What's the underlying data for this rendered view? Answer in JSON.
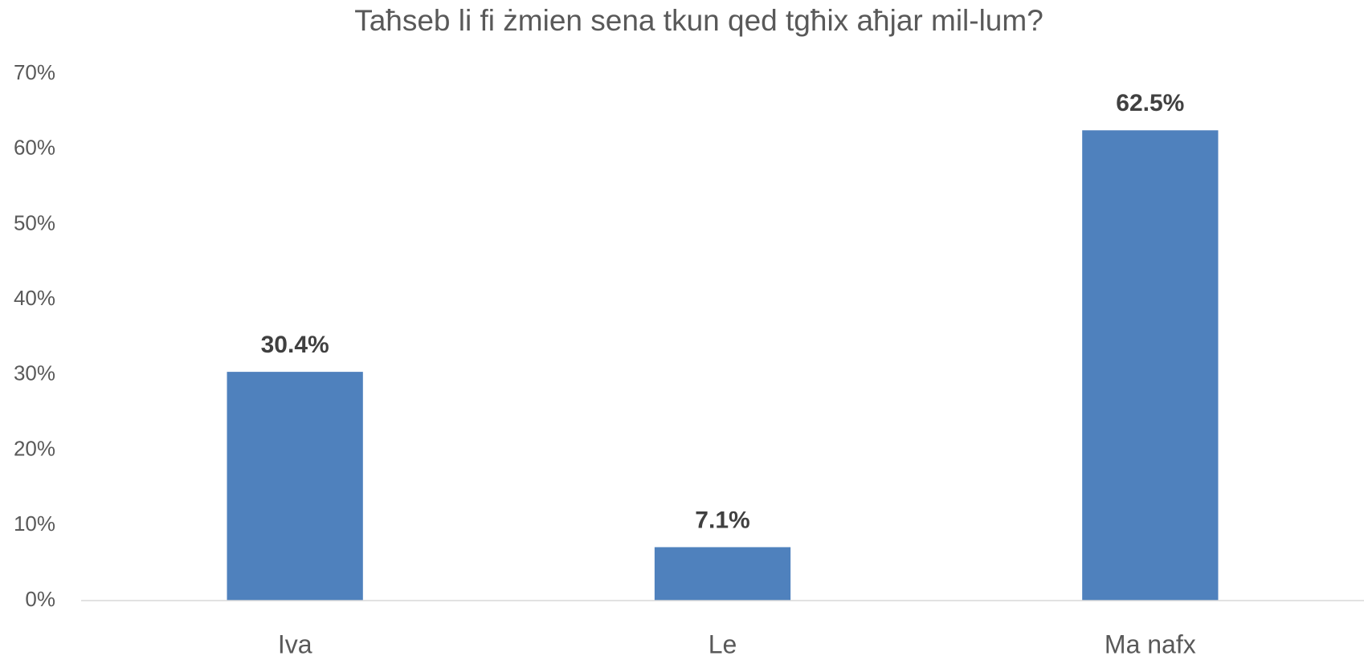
{
  "chart_data": {
    "type": "bar",
    "title": "Taħseb li fi żmien sena tkun qed tgħix aħjar mil-lum?",
    "categories": [
      "Iva",
      "Le",
      "Ma nafx"
    ],
    "values": [
      30.4,
      7.1,
      62.5
    ],
    "value_labels": [
      "30.4%",
      "7.1%",
      "62.5%"
    ],
    "color": "#4f81bd",
    "ylim": [
      0,
      70
    ],
    "yticks": [
      {
        "value": 0,
        "label": "0%"
      },
      {
        "value": 10,
        "label": "10%"
      },
      {
        "value": 20,
        "label": "20%"
      },
      {
        "value": 30,
        "label": "30%"
      },
      {
        "value": 40,
        "label": "40%"
      },
      {
        "value": 50,
        "label": "50%"
      },
      {
        "value": 60,
        "label": "60%"
      },
      {
        "value": 70,
        "label": "70%"
      }
    ],
    "grid": false
  }
}
